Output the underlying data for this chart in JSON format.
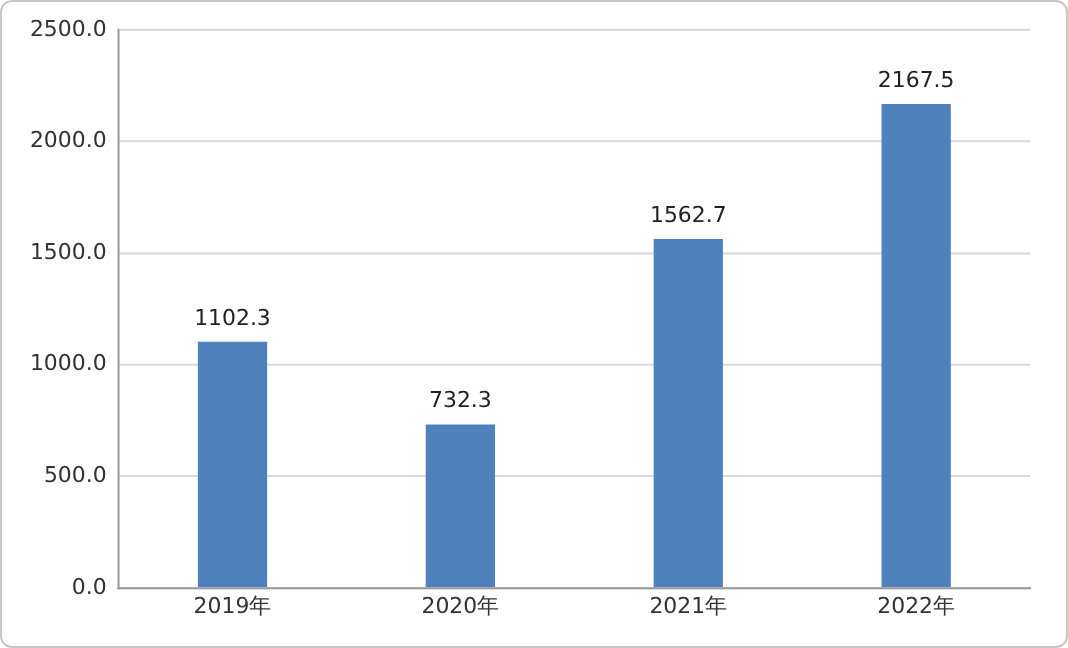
{
  "chart_data": {
    "type": "bar",
    "categories": [
      "2019年",
      "2020年",
      "2021年",
      "2022年"
    ],
    "values": [
      1102.3,
      732.3,
      1562.7,
      2167.5
    ],
    "color": "#4f81bd",
    "ylim": [
      0,
      2500
    ],
    "yticks": [
      {
        "value": 0,
        "label": "0.0"
      },
      {
        "value": 500,
        "label": "500.0"
      },
      {
        "value": 1000,
        "label": "1000.0"
      },
      {
        "value": 1500,
        "label": "1500.0"
      },
      {
        "value": 2000,
        "label": "2000.0"
      },
      {
        "value": 2500,
        "label": "2500.0"
      }
    ],
    "grid": "y",
    "data_labels": true
  }
}
